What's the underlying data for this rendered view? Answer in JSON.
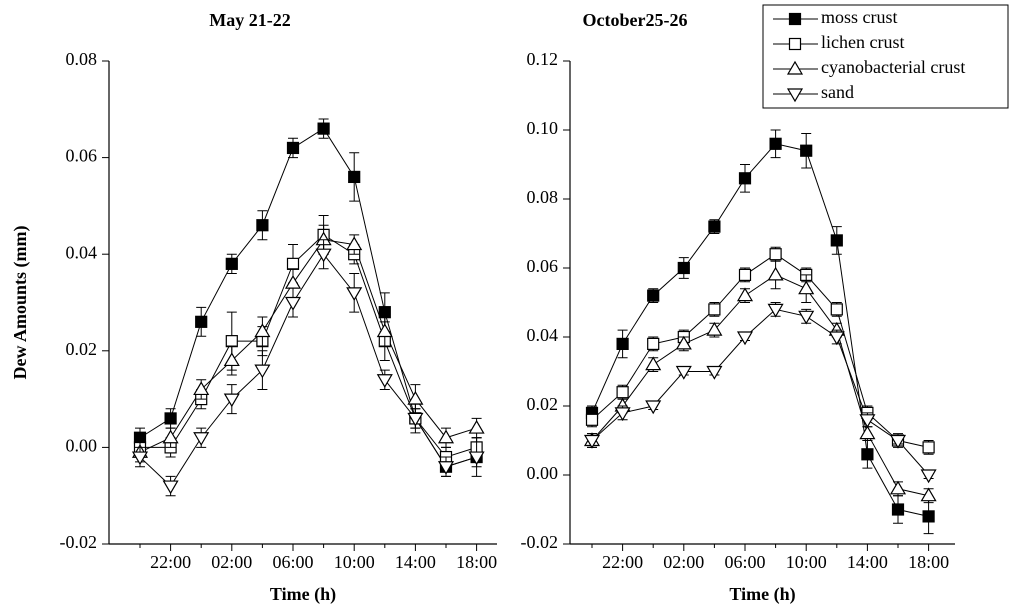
{
  "chart_data": [
    {
      "type": "line",
      "title": "May 21-22",
      "x_label": "Time (h)",
      "y_label": "Dew Amounts (mm)",
      "categories": [
        null,
        "22:00",
        null,
        "02:00",
        null,
        "06:00",
        null,
        "10:00",
        null,
        "14:00",
        null,
        "18:00"
      ],
      "ylim": [
        -0.02,
        0.08
      ],
      "yticks": [
        -0.02,
        {
          "value": 0,
          "label": "0.00"
        },
        0.02,
        0.04,
        0.06,
        0.08
      ],
      "series": [
        {
          "name": "moss crust",
          "color": "#000000",
          "marker": "square-filled",
          "values": [
            0.002,
            0.006,
            0.026,
            0.038,
            0.046,
            0.062,
            0.066,
            0.056,
            0.028,
            0.006,
            -0.004,
            -0.002
          ],
          "errors": [
            0.002,
            0.002,
            0.003,
            0.002,
            0.003,
            0.002,
            0.002,
            0.005,
            0.004,
            0.002,
            0.002,
            0.002
          ]
        },
        {
          "name": "lichen crust",
          "color": "#000000",
          "marker": "square-open",
          "values": [
            0,
            0,
            0.01,
            0.022,
            0.022,
            0.038,
            0.044,
            0.04,
            0.022,
            0.006,
            -0.002,
            0
          ],
          "errors": [
            0.002,
            0.002,
            0.002,
            0.006,
            0.003,
            0.004,
            0.004,
            0.002,
            0.004,
            0.002,
            0.002,
            0.002
          ]
        },
        {
          "name": "cyanobacterial crust",
          "color": "#000000",
          "marker": "triangle-up",
          "values": [
            -0.001,
            0.002,
            0.012,
            0.018,
            0.024,
            0.034,
            0.043,
            0.042,
            0.024,
            0.01,
            0.002,
            0.004
          ],
          "errors": [
            0.002,
            0.002,
            0.002,
            0.003,
            0.003,
            0.003,
            0.003,
            0.002,
            0.003,
            0.003,
            0.002,
            0.002
          ]
        },
        {
          "name": "sand",
          "color": "#000000",
          "marker": "triangle-down",
          "values": [
            -0.002,
            -0.008,
            0.002,
            0.01,
            0.016,
            0.03,
            0.04,
            0.032,
            0.014,
            0.006,
            -0.004,
            -0.002
          ],
          "errors": [
            0.002,
            0.002,
            0.002,
            0.003,
            0.004,
            0.003,
            0.003,
            0.004,
            0.002,
            0.003,
            0.002,
            0.004
          ]
        }
      ]
    },
    {
      "type": "line",
      "title": "October25-26",
      "x_label": "Time (h)",
      "legend": "upper right",
      "categories": [
        null,
        "22:00",
        null,
        "02:00",
        null,
        "06:00",
        null,
        "10:00",
        null,
        "14:00",
        null,
        "18:00"
      ],
      "ylim": [
        -0.02,
        0.12
      ],
      "yticks": [
        -0.02,
        {
          "value": 0,
          "label": "0.00"
        },
        0.02,
        0.04,
        0.06,
        0.08,
        {
          "value": 0.1,
          "label": "0.10"
        },
        0.12
      ],
      "series": [
        {
          "name": "moss crust",
          "color": "#000000",
          "marker": "square-filled",
          "values": [
            0.018,
            0.038,
            0.052,
            0.06,
            0.072,
            0.086,
            0.096,
            0.094,
            0.068,
            0.006,
            -0.01,
            -0.012
          ],
          "errors": [
            0.002,
            0.004,
            0.002,
            0.003,
            0.002,
            0.004,
            0.004,
            0.005,
            0.004,
            0.004,
            0.004,
            0.005
          ]
        },
        {
          "name": "lichen crust",
          "color": "#000000",
          "marker": "square-open",
          "values": [
            0.016,
            0.024,
            0.038,
            0.04,
            0.048,
            0.058,
            0.064,
            0.058,
            0.048,
            0.018,
            0.01,
            0.008
          ],
          "errors": [
            0.002,
            0.002,
            0.002,
            0.002,
            0.002,
            0.002,
            0.002,
            0.002,
            0.002,
            0.002,
            0.002,
            0.002
          ]
        },
        {
          "name": "cyanobacterial crust",
          "color": "#000000",
          "marker": "triangle-up",
          "values": [
            0.01,
            0.02,
            0.032,
            0.038,
            0.042,
            0.052,
            0.058,
            0.054,
            0.042,
            0.012,
            -0.004,
            -0.006
          ],
          "errors": [
            0.002,
            0.002,
            0.002,
            0.002,
            0.002,
            0.002,
            0.004,
            0.004,
            0.002,
            0.002,
            0.002,
            0.002
          ]
        },
        {
          "name": "sand",
          "color": "#000000",
          "marker": "triangle-down",
          "values": [
            0.01,
            0.018,
            0.02,
            0.03,
            0.03,
            0.04,
            0.048,
            0.046,
            0.04,
            0.016,
            0.01,
            0
          ],
          "errors": [
            0.002,
            0.002,
            0.001,
            0.001,
            0.001,
            0.001,
            0.002,
            0.002,
            0.002,
            0.002,
            0.001,
            0.001
          ]
        }
      ]
    }
  ]
}
